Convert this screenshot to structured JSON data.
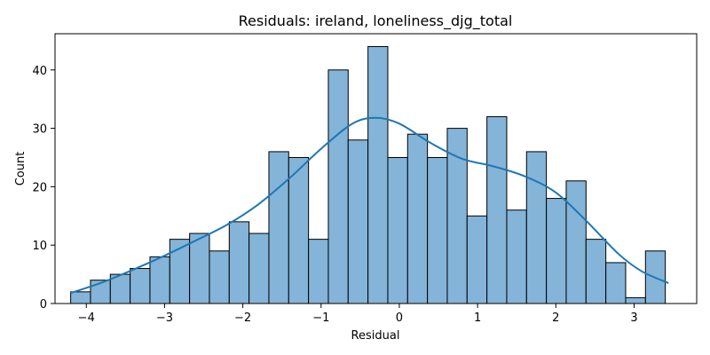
{
  "chart_data": {
    "type": "bar",
    "subtype": "histogram-with-kde",
    "title": "Residuals: ireland, loneliness_djg_total",
    "xlabel": "Residual",
    "ylabel": "Count",
    "xlim": [
      -4.4,
      3.8
    ],
    "ylim": [
      0,
      46.2
    ],
    "bin_start": -4.2,
    "bin_width": 0.2533,
    "counts": [
      2,
      4,
      5,
      6,
      8,
      11,
      12,
      9,
      14,
      12,
      26,
      25,
      11,
      40,
      28,
      44,
      25,
      29,
      25,
      30,
      15,
      32,
      16,
      26,
      18,
      21,
      11,
      7,
      1,
      9
    ],
    "xticks": [
      -4,
      -3,
      -2,
      -1,
      0,
      1,
      2,
      3
    ],
    "xtick_labels": [
      "−4",
      "−3",
      "−2",
      "−1",
      "0",
      "1",
      "2",
      "3"
    ],
    "yticks": [
      0,
      10,
      20,
      30,
      40
    ],
    "ytick_labels": [
      "0",
      "10",
      "20",
      "30",
      "40"
    ],
    "kde": {
      "x": [
        -4.2,
        -3.8,
        -3.4,
        -3.0,
        -2.6,
        -2.2,
        -1.8,
        -1.4,
        -1.0,
        -0.6,
        -0.3,
        0.0,
        0.4,
        0.8,
        1.2,
        1.6,
        2.0,
        2.4,
        2.8,
        3.1,
        3.44
      ],
      "y": [
        1.8,
        3.6,
        5.8,
        8.2,
        10.8,
        13.5,
        17.0,
        21.5,
        26.5,
        30.8,
        31.8,
        30.8,
        27.5,
        24.8,
        23.5,
        21.8,
        19.0,
        14.0,
        8.5,
        5.5,
        3.5
      ]
    },
    "colors": {
      "bar_fill": "#84b4d8",
      "bar_edge": "#000000",
      "kde_line": "#1f77b4"
    },
    "grid": false,
    "legend": "none"
  }
}
